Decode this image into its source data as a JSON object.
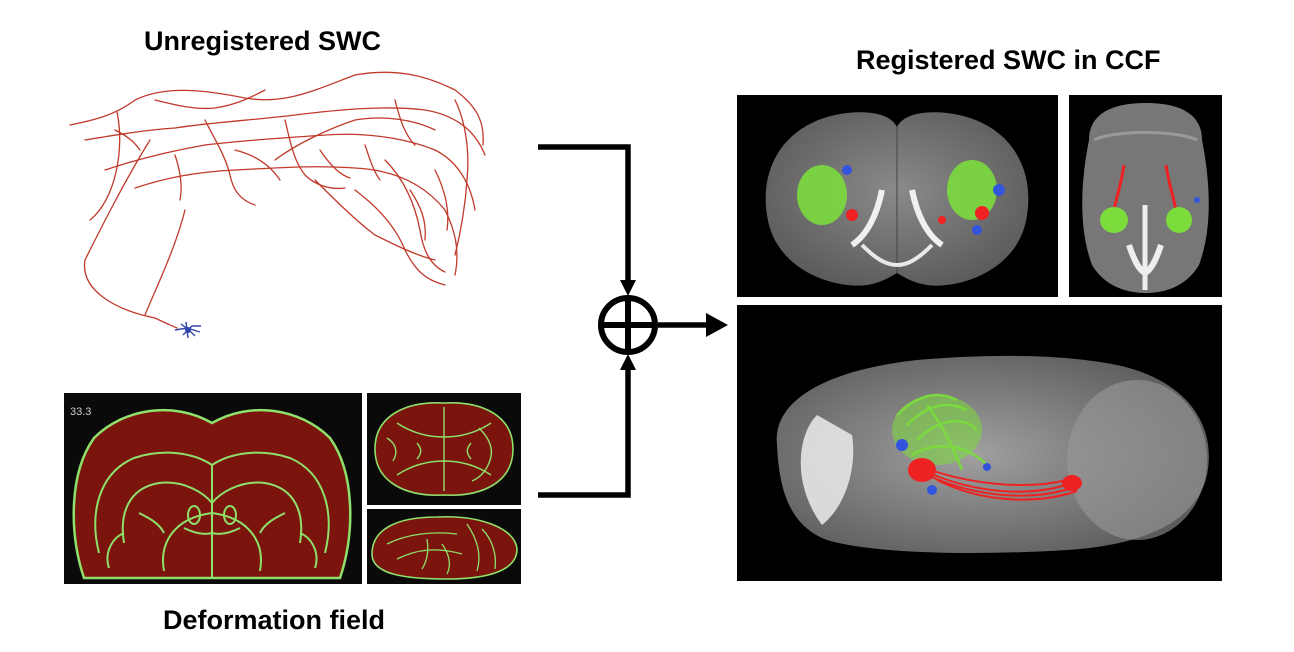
{
  "titles": {
    "unregistered": "Unregistered SWC",
    "registered": "Registered SWC in CCF",
    "deformation": "Deformation field"
  },
  "deformation_panel": {
    "slice_label": "33.3"
  },
  "colors": {
    "neuron_trace": "#c0392b",
    "soma": "#3344aa",
    "atlas_outline": "#8ee06a",
    "tissue": "#7a140c",
    "projection_green": "#7bdc3c",
    "projection_red": "#ee2222",
    "projection_blue": "#3355dd"
  },
  "icons": {
    "combine": "circled-plus-icon",
    "output": "right-arrow-icon"
  }
}
